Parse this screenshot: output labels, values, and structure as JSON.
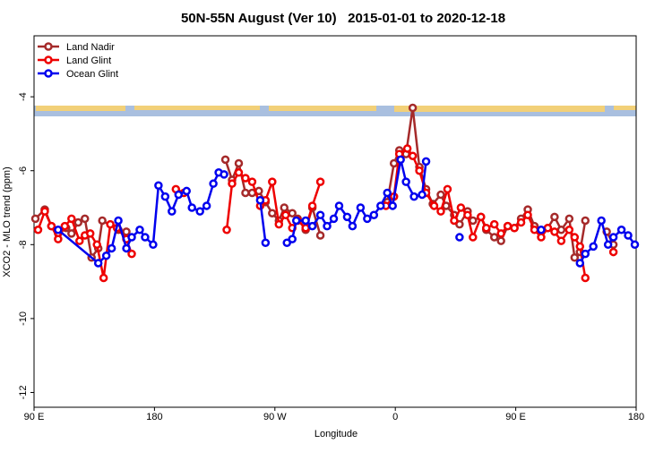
{
  "chart_data": {
    "type": "line",
    "title": "50N-55N August (Ver 10)   2015-01-01 to 2020-12-18",
    "x_label": "Longitude",
    "y_label": "XCO2 - MLO trend (ppm)",
    "xlim": [
      90,
      540
    ],
    "ylim": [
      -12.4,
      -2.35
    ],
    "xticks": [
      {
        "value": 90,
        "label": "90 E"
      },
      {
        "value": 180,
        "label": "180"
      },
      {
        "value": 270,
        "label": "90 W"
      },
      {
        "value": 360,
        "label": "0"
      },
      {
        "value": 450,
        "label": "90 E"
      },
      {
        "value": 540,
        "label": "180"
      }
    ],
    "yticks": [
      -4,
      -6,
      -8,
      -10,
      -12
    ],
    "grid": false,
    "legend": "top-left",
    "series": [
      {
        "name": "Land Nadir",
        "color": "#a52a2a",
        "x": [
          91,
          98,
          103,
          108,
          114,
          118,
          123,
          128,
          133,
          138,
          141,
          153,
          159,
          195,
          233,
          238,
          243,
          248,
          253,
          258,
          263,
          268,
          273,
          277,
          283,
          287,
          293,
          298,
          304,
          335,
          354,
          359,
          363,
          368,
          373,
          378,
          383,
          388,
          394,
          398,
          404,
          408,
          414,
          418,
          424,
          428,
          434,
          439,
          444,
          449,
          454,
          459,
          464,
          469,
          474,
          479,
          484,
          490,
          494,
          498,
          502,
          510,
          518,
          523
        ],
        "values": [
          -7.3,
          -7.05,
          -7.5,
          -7.7,
          -7.55,
          -7.7,
          -7.4,
          -7.3,
          -8.35,
          -8.1,
          -7.35,
          -7.6,
          -7.65,
          null,
          -5.7,
          -6.25,
          -5.8,
          -6.6,
          -6.6,
          -6.55,
          -6.85,
          -7.15,
          -7.35,
          -7.0,
          -7.15,
          -7.3,
          -7.6,
          -7.0,
          -7.75,
          null,
          -6.85,
          -5.8,
          -5.45,
          -5.55,
          -4.3,
          -5.9,
          -6.5,
          -6.9,
          -6.65,
          -6.95,
          -7.2,
          -7.45,
          -7.1,
          -7.35,
          -7.25,
          -7.6,
          -7.8,
          -7.9,
          -7.5,
          -7.55,
          -7.3,
          -7.05,
          -7.5,
          -7.65,
          -7.55,
          -7.25,
          -7.6,
          -7.3,
          -8.35,
          -8.2,
          -7.35,
          null,
          -7.65,
          -8.0
        ]
      },
      {
        "name": "Land Glint",
        "color": "#ee0000",
        "x": [
          93,
          98,
          103,
          108,
          113,
          118,
          124,
          128,
          132,
          137,
          142,
          147,
          152,
          159,
          163,
          175,
          196,
          202,
          210,
          234,
          238,
          243,
          248,
          253,
          259,
          263,
          268,
          273,
          278,
          283,
          287,
          293,
          298,
          304,
          335,
          353,
          359,
          363,
          369,
          373,
          378,
          383,
          389,
          394,
          399,
          404,
          409,
          414,
          418,
          424,
          428,
          434,
          439,
          444,
          449,
          454,
          459,
          464,
          469,
          474,
          479,
          484,
          490,
          494,
          498,
          502,
          510,
          523
        ],
        "values": [
          -7.6,
          -7.1,
          -7.5,
          -7.85,
          -7.5,
          -7.3,
          -7.9,
          -7.75,
          -7.7,
          -8.0,
          -8.9,
          -7.45,
          -7.55,
          -7.85,
          -8.25,
          null,
          -6.5,
          -6.6,
          null,
          -7.6,
          -6.35,
          -6.05,
          -6.2,
          -6.3,
          -6.95,
          -6.8,
          -6.3,
          -7.45,
          -7.2,
          -7.55,
          -7.35,
          -7.55,
          -6.95,
          -6.3,
          null,
          -6.95,
          -6.7,
          -5.55,
          -5.4,
          -5.6,
          -6.0,
          -6.6,
          -6.95,
          -7.1,
          -6.5,
          -7.35,
          -7.0,
          -7.2,
          -7.8,
          -7.25,
          -7.55,
          -7.45,
          -7.7,
          -7.5,
          -7.55,
          -7.4,
          -7.2,
          -7.6,
          -7.8,
          -7.55,
          -7.65,
          -7.9,
          -7.6,
          -7.8,
          -8.05,
          -8.9,
          null,
          -8.2
        ]
      },
      {
        "name": "Ocean Glint",
        "color": "#0000ee",
        "x": [
          108,
          138,
          144,
          148,
          153,
          159,
          163,
          169,
          173,
          179,
          183,
          188,
          193,
          198,
          204,
          208,
          214,
          219,
          224,
          228,
          232,
          245,
          259,
          263,
          270,
          279,
          283,
          286,
          293,
          298,
          304,
          309,
          314,
          318,
          324,
          328,
          334,
          339,
          344,
          349,
          354,
          358,
          364,
          368,
          374,
          380,
          383,
          395,
          408,
          440,
          469,
          480,
          498,
          502,
          508,
          514,
          519,
          523,
          529,
          534,
          539
        ],
        "values": [
          -7.6,
          -8.5,
          -8.3,
          -8.1,
          -7.35,
          -8.1,
          -7.8,
          -7.6,
          -7.8,
          -8.0,
          -6.4,
          -6.7,
          -7.1,
          -6.65,
          -6.55,
          -7.0,
          -7.1,
          -6.95,
          -6.35,
          -6.05,
          -6.1,
          null,
          -6.8,
          -7.95,
          null,
          -7.95,
          -7.85,
          -7.35,
          -7.35,
          -7.5,
          -7.2,
          -7.5,
          -7.3,
          -6.95,
          -7.25,
          -7.5,
          -7.0,
          -7.3,
          -7.2,
          -6.95,
          -6.6,
          -6.95,
          -5.7,
          -6.3,
          -6.7,
          -6.65,
          -5.75,
          null,
          -7.8,
          null,
          -7.6,
          null,
          -8.5,
          -8.25,
          -8.05,
          -7.35,
          -8.0,
          -7.8,
          -7.6,
          -7.75,
          -8.0
        ]
      }
    ]
  }
}
